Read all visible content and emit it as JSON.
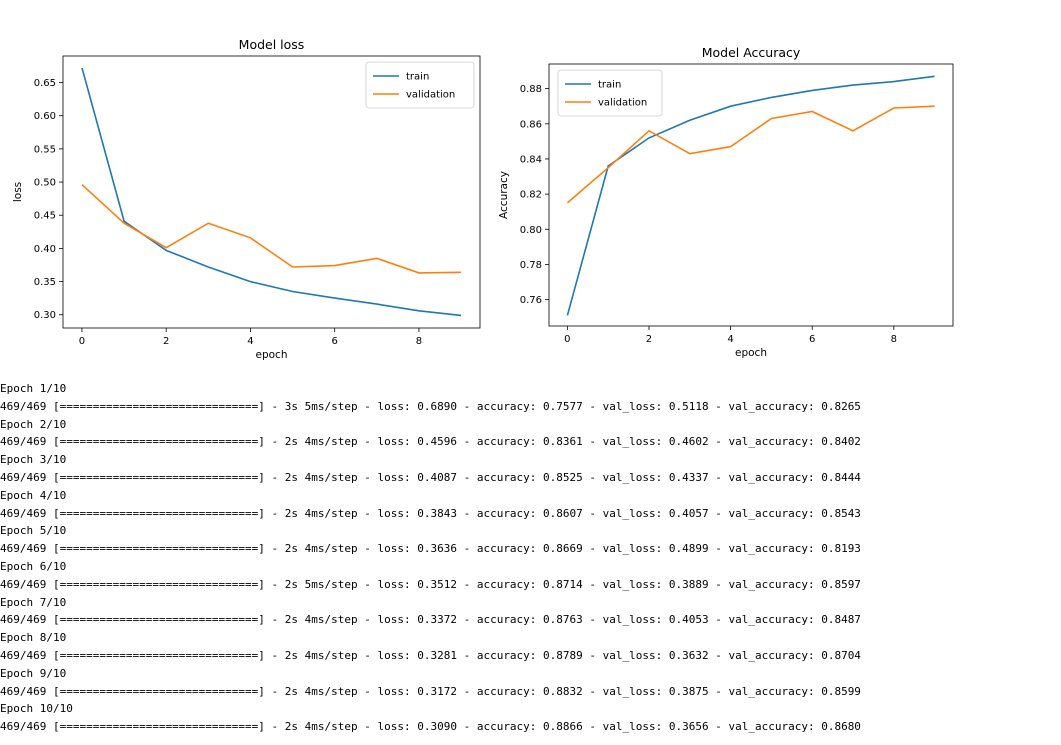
{
  "chart_data": [
    {
      "type": "line",
      "title": "Model loss",
      "xlabel": "epoch",
      "ylabel": "loss",
      "x": [
        0,
        1,
        2,
        3,
        4,
        5,
        6,
        7,
        8,
        9
      ],
      "xlim": [
        -0.45,
        9.45
      ],
      "ylim": [
        0.28,
        0.69
      ],
      "xticks": [
        0,
        2,
        4,
        6,
        8
      ],
      "yticks": [
        0.3,
        0.35,
        0.4,
        0.45,
        0.5,
        0.55,
        0.6,
        0.65
      ],
      "ytick_labels": [
        "0.30",
        "0.35",
        "0.40",
        "0.45",
        "0.50",
        "0.55",
        "0.60",
        "0.65"
      ],
      "legend": "top-right",
      "grid": false,
      "series": [
        {
          "name": "train",
          "color": "#1f77b4",
          "values": [
            0.672,
            0.441,
            0.397,
            0.372,
            0.35,
            0.335,
            0.325,
            0.316,
            0.306,
            0.299
          ]
        },
        {
          "name": "validation",
          "color": "#ff7f0e",
          "values": [
            0.496,
            0.438,
            0.401,
            0.438,
            0.416,
            0.372,
            0.374,
            0.385,
            0.363,
            0.364
          ]
        }
      ]
    },
    {
      "type": "line",
      "title": "Model Accuracy",
      "xlabel": "epoch",
      "ylabel": "Accuracy",
      "x": [
        0,
        1,
        2,
        3,
        4,
        5,
        6,
        7,
        8,
        9
      ],
      "xlim": [
        -0.45,
        9.45
      ],
      "ylim": [
        0.745,
        0.894
      ],
      "xticks": [
        0,
        2,
        4,
        6,
        8
      ],
      "yticks": [
        0.76,
        0.78,
        0.8,
        0.82,
        0.84,
        0.86,
        0.88
      ],
      "ytick_labels": [
        "0.76",
        "0.78",
        "0.80",
        "0.82",
        "0.84",
        "0.86",
        "0.88"
      ],
      "legend": "top-left",
      "grid": false,
      "series": [
        {
          "name": "train",
          "color": "#1f77b4",
          "values": [
            0.751,
            0.836,
            0.852,
            0.862,
            0.87,
            0.875,
            0.879,
            0.882,
            0.884,
            0.887
          ]
        },
        {
          "name": "validation",
          "color": "#ff7f0e",
          "values": [
            0.815,
            0.835,
            0.856,
            0.843,
            0.847,
            0.863,
            0.867,
            0.856,
            0.869,
            0.87
          ]
        }
      ]
    }
  ],
  "training_log": [
    "Epoch 1/10",
    "469/469 [==============================] - 3s 5ms/step - loss: 0.6890 - accuracy: 0.7577 - val_loss: 0.5118 - val_accuracy: 0.8265",
    "Epoch 2/10",
    "469/469 [==============================] - 2s 4ms/step - loss: 0.4596 - accuracy: 0.8361 - val_loss: 0.4602 - val_accuracy: 0.8402",
    "Epoch 3/10",
    "469/469 [==============================] - 2s 4ms/step - loss: 0.4087 - accuracy: 0.8525 - val_loss: 0.4337 - val_accuracy: 0.8444",
    "Epoch 4/10",
    "469/469 [==============================] - 2s 4ms/step - loss: 0.3843 - accuracy: 0.8607 - val_loss: 0.4057 - val_accuracy: 0.8543",
    "Epoch 5/10",
    "469/469 [==============================] - 2s 4ms/step - loss: 0.3636 - accuracy: 0.8669 - val_loss: 0.4899 - val_accuracy: 0.8193",
    "Epoch 6/10",
    "469/469 [==============================] - 2s 5ms/step - loss: 0.3512 - accuracy: 0.8714 - val_loss: 0.3889 - val_accuracy: 0.8597",
    "Epoch 7/10",
    "469/469 [==============================] - 2s 4ms/step - loss: 0.3372 - accuracy: 0.8763 - val_loss: 0.4053 - val_accuracy: 0.8487",
    "Epoch 8/10",
    "469/469 [==============================] - 2s 4ms/step - loss: 0.3281 - accuracy: 0.8789 - val_loss: 0.3632 - val_accuracy: 0.8704",
    "Epoch 9/10",
    "469/469 [==============================] - 2s 4ms/step - loss: 0.3172 - accuracy: 0.8832 - val_loss: 0.3875 - val_accuracy: 0.8599",
    "Epoch 10/10",
    "469/469 [==============================] - 2s 4ms/step - loss: 0.3090 - accuracy: 0.8866 - val_loss: 0.3656 - val_accuracy: 0.8680"
  ]
}
